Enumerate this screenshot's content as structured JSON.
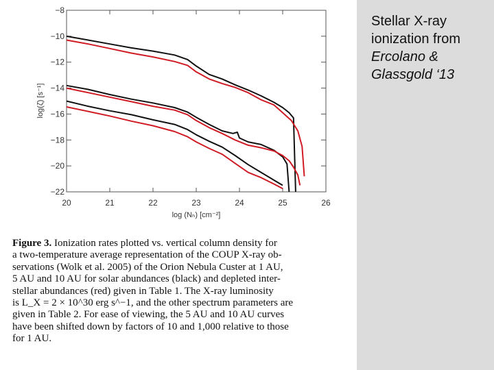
{
  "side_note": {
    "line1": "Stellar X-ray",
    "line2": "ionization from",
    "line3": "Ercolano &",
    "line4": "Glassgold ‘13"
  },
  "chart_data": {
    "type": "line",
    "xlabel": "log (Nₕ) [cm⁻²]",
    "ylabel": "log(ζ) [s⁻¹]",
    "xlim": [
      20,
      26
    ],
    "ylim": [
      -22,
      -8
    ],
    "xticks": [
      "20",
      "21",
      "22",
      "23",
      "24",
      "25",
      "26"
    ],
    "yticks": [
      "−8",
      "−10",
      "−12",
      "−14",
      "−16",
      "−18",
      "−20",
      "−22"
    ],
    "grid": false,
    "colors": {
      "solar": "#111111",
      "depleted": "#d01b24"
    },
    "series": [
      {
        "group": "1AU",
        "abundance": "solar",
        "x": [
          20.0,
          20.5,
          21.0,
          21.5,
          22.0,
          22.5,
          22.8,
          23.0,
          23.3,
          23.6,
          23.9,
          24.2,
          24.5,
          24.8,
          25.0,
          25.15,
          25.25,
          25.3
        ],
        "y": [
          -10.0,
          -10.3,
          -10.6,
          -10.9,
          -11.15,
          -11.45,
          -11.8,
          -12.3,
          -12.95,
          -13.3,
          -13.75,
          -14.15,
          -14.6,
          -15.1,
          -15.5,
          -15.9,
          -16.3,
          -22.0
        ]
      },
      {
        "group": "1AU",
        "abundance": "depleted",
        "x": [
          20.0,
          20.5,
          21.0,
          21.5,
          22.0,
          22.5,
          22.8,
          23.0,
          23.3,
          23.6,
          23.9,
          24.2,
          24.5,
          24.8,
          25.0,
          25.2,
          25.35,
          25.45,
          25.5
        ],
        "y": [
          -10.3,
          -10.6,
          -10.95,
          -11.3,
          -11.6,
          -11.95,
          -12.25,
          -12.75,
          -13.3,
          -13.65,
          -13.95,
          -14.35,
          -14.9,
          -15.3,
          -15.9,
          -16.5,
          -17.3,
          -18.5,
          -20.8
        ]
      },
      {
        "group": "5AU",
        "abundance": "solar",
        "x": [
          20.0,
          20.5,
          21.0,
          21.5,
          22.0,
          22.5,
          22.8,
          23.0,
          23.3,
          23.6,
          23.85,
          23.95,
          24.0,
          24.2,
          24.5,
          24.8,
          25.0,
          25.1,
          25.15
        ],
        "y": [
          -13.8,
          -14.1,
          -14.5,
          -14.85,
          -15.15,
          -15.5,
          -15.85,
          -16.25,
          -16.8,
          -17.3,
          -17.5,
          -17.4,
          -17.85,
          -18.15,
          -18.35,
          -18.8,
          -19.3,
          -19.85,
          -22.0
        ]
      },
      {
        "group": "5AU",
        "abundance": "depleted",
        "x": [
          20.0,
          20.5,
          21.0,
          21.5,
          22.0,
          22.5,
          22.8,
          23.0,
          23.3,
          23.6,
          23.9,
          24.2,
          24.5,
          24.8,
          25.0,
          25.15,
          25.25,
          25.35,
          25.4
        ],
        "y": [
          -14.0,
          -14.35,
          -14.7,
          -15.05,
          -15.4,
          -15.7,
          -16.05,
          -16.5,
          -17.05,
          -17.5,
          -18.0,
          -18.4,
          -18.6,
          -18.85,
          -19.2,
          -19.6,
          -20.1,
          -20.7,
          -21.5
        ]
      },
      {
        "group": "10AU",
        "abundance": "solar",
        "x": [
          20.0,
          20.5,
          21.0,
          21.5,
          22.0,
          22.5,
          22.8,
          23.0,
          23.3,
          23.6,
          23.9,
          24.2,
          24.5,
          24.8,
          25.0
        ],
        "y": [
          -15.0,
          -15.4,
          -15.75,
          -16.05,
          -16.45,
          -16.8,
          -17.2,
          -17.6,
          -18.1,
          -18.55,
          -19.2,
          -19.9,
          -20.5,
          -21.1,
          -21.5
        ]
      },
      {
        "group": "10AU",
        "abundance": "depleted",
        "x": [
          20.0,
          20.5,
          21.0,
          21.5,
          22.0,
          22.5,
          22.8,
          23.0,
          23.3,
          23.6,
          23.9,
          24.2,
          24.5,
          24.8,
          25.0
        ],
        "y": [
          -15.45,
          -15.8,
          -16.15,
          -16.55,
          -16.9,
          -17.35,
          -17.75,
          -18.15,
          -18.65,
          -19.1,
          -19.8,
          -20.5,
          -20.9,
          -21.4,
          -21.75
        ]
      }
    ]
  },
  "caption": {
    "fig_label": "Figure 3.",
    "line1": "Ionization rates plotted vs. vertical column density for",
    "line2": "a two-temperature average representation of the COUP X-ray ob-",
    "line3": "servations (Wolk et al. 2005) of the Orion Nebula Custer at 1 AU,",
    "line4": "5 AU and 10 AU for solar abundances (black) and depleted inter-",
    "line5": "stellar abundances (red) given in Table 1. The X-ray luminosity",
    "line6": "is L_X = 2 × 10^30 erg s^−1, and the other spectrum parameters are",
    "line7": "given in Table 2. For ease of viewing, the 5 AU and 10 AU curves",
    "line8": "have been shifted down by factors of 10 and 1,000 relative to those",
    "line9": "for 1 AU."
  }
}
